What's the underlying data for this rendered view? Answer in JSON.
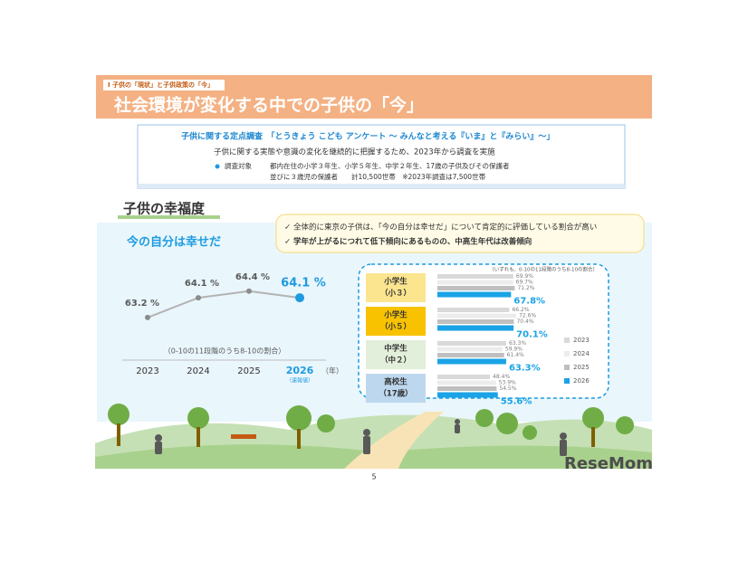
{
  "section_label": "Ⅰ 子供の「現状」と子供政策の「今」",
  "title": "社会環境が変化する中での子供の「今」",
  "survey": {
    "heading": "子供に関する定点調査　「とうきょう こども アンケート ～ みんなと考える『いま』と『みらい』～」",
    "description": "子供に関する実態や意識の変化を継続的に把握するため、2023年から調査を実施",
    "target_label": "調査対象",
    "target_lines": [
      "都内在住の小学３年生、小学５年生、中学２年生、17歳の子供及びその保護者",
      "並びに３歳児の保護者　　計10,500世帯　※2023年調査は7,500世帯"
    ]
  },
  "section_title": "子供の幸福度",
  "notes": [
    "全体的に東京の子供は、「今の自分は幸せだ」について肯定的に評価している割合が高い",
    "学年が上がるにつれて低下傾向にあるものの、中高生年代は改善傾向"
  ],
  "page_number": "5",
  "logo": "ReseMom",
  "chart_data": [
    {
      "type": "line",
      "title": "今の自分は幸せだ",
      "categories": [
        "2023",
        "2024",
        "2025",
        "2026"
      ],
      "x_axis_label": "（年）",
      "annotation": "（速報値）",
      "note": "（0-10の11段階のうち8-10の割合）",
      "values": [
        63.2,
        64.1,
        64.4,
        64.1
      ],
      "value_labels": [
        "63.2 %",
        "64.1 %",
        "64.4 %",
        "64.1 %"
      ],
      "color": "#b3b3b3",
      "highlight_color": "#1e9be0",
      "ylim": [
        62,
        66
      ]
    },
    {
      "type": "bar",
      "orientation": "horizontal",
      "note": "（いずれも、0-10の11段階のうち8-10の割合）",
      "categories": [
        [
          "小学生",
          "（小３）"
        ],
        [
          "小学生",
          "（小５）"
        ],
        [
          "中学生",
          "（中２）"
        ],
        [
          "高校生",
          "（17歳）"
        ]
      ],
      "category_colors": [
        "#fce58f",
        "#f8c200",
        "#e2efda",
        "#bdd7ee"
      ],
      "xlim": [
        0,
        100
      ],
      "series": [
        {
          "name": "2023",
          "color": "#d9d9d9",
          "values": [
            69.9,
            66.2,
            63.3,
            48.4
          ],
          "value_labels": [
            "69.9%",
            "66.2%",
            "63.3%",
            "48.4%"
          ]
        },
        {
          "name": "2024",
          "color": "#ececec",
          "values": [
            69.7,
            72.6,
            59.9,
            53.9
          ],
          "value_labels": [
            "69.7%",
            "72.6%",
            "59.9%",
            "53.9%"
          ]
        },
        {
          "name": "2025",
          "color": "#bfbfbf",
          "values": [
            71.2,
            70.4,
            61.4,
            54.5
          ],
          "value_labels": [
            "71.2%",
            "70.4%",
            "61.4%",
            "54.5%"
          ]
        },
        {
          "name": "2026",
          "color": "#1aa3e6",
          "values": [
            67.8,
            70.1,
            63.3,
            55.6
          ],
          "value_labels": [
            "67.8%",
            "70.1%",
            "63.3%",
            "55.6%"
          ]
        }
      ]
    }
  ]
}
